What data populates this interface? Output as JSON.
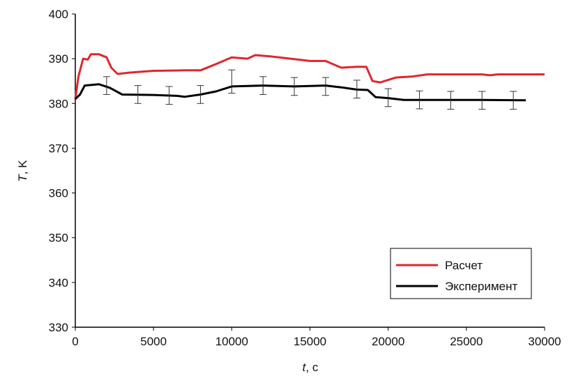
{
  "chart_data": {
    "type": "line",
    "title": "",
    "xlabel": "t, с",
    "xlabel_italic": "t",
    "xlabel_unit": ", с",
    "ylabel": "T, K",
    "ylabel_italic": "T",
    "ylabel_unit": ", K",
    "xlim": [
      0,
      30000
    ],
    "ylim": [
      330,
      400
    ],
    "xticks": [
      0,
      5000,
      10000,
      15000,
      20000,
      25000,
      30000
    ],
    "yticks": [
      330,
      340,
      350,
      360,
      370,
      380,
      390,
      400
    ],
    "grid": false,
    "legend_placement": "bottom-right",
    "series": [
      {
        "name": "Расчет",
        "color": "#e0262e",
        "x": [
          0,
          200,
          500,
          800,
          1000,
          1500,
          2000,
          2300,
          2700,
          3500,
          5000,
          7000,
          8000,
          9000,
          10000,
          11000,
          11500,
          12500,
          14000,
          15000,
          16000,
          17000,
          18000,
          18600,
          19000,
          19500,
          20500,
          21500,
          22500,
          26000,
          26500,
          27000,
          30000
        ],
        "y": [
          381,
          386,
          390,
          389.8,
          391,
          391,
          390.3,
          388,
          386.6,
          386.9,
          387.3,
          387.4,
          387.4,
          388.8,
          390.3,
          390,
          390.8,
          390.5,
          389.9,
          389.5,
          389.5,
          388,
          388.2,
          388.2,
          385,
          384.7,
          385.8,
          386,
          386.5,
          386.5,
          386.3,
          386.5,
          386.5
        ]
      },
      {
        "name": "Эксперимент",
        "color": "#000000",
        "x": [
          0,
          300,
          600,
          1500,
          2200,
          3000,
          5000,
          6500,
          7000,
          8000,
          9000,
          10000,
          12000,
          14000,
          16000,
          17000,
          18000,
          18700,
          19200,
          20000,
          21000,
          23000,
          26000,
          28800
        ],
        "y": [
          381,
          382,
          384,
          384.3,
          383.5,
          382,
          381.9,
          381.7,
          381.5,
          382,
          382.7,
          383.8,
          384,
          383.8,
          384,
          383.6,
          383.1,
          383,
          381.4,
          381.2,
          380.8,
          380.8,
          380.8,
          380.7
        ],
        "error_bars": {
          "x": [
            2000,
            4000,
            6000,
            8000,
            10000,
            12000,
            14000,
            16000,
            18000,
            20000,
            22000,
            24000,
            26000,
            28000
          ],
          "low": [
            382,
            380,
            379.8,
            380,
            382.3,
            382,
            381.8,
            381.8,
            381.2,
            379.3,
            378.8,
            378.7,
            378.7,
            378.7
          ],
          "high": [
            386,
            384,
            383.8,
            384,
            387.5,
            386,
            385.8,
            385.8,
            385.2,
            383.3,
            382.8,
            382.7,
            382.7,
            382.7
          ]
        }
      }
    ]
  }
}
